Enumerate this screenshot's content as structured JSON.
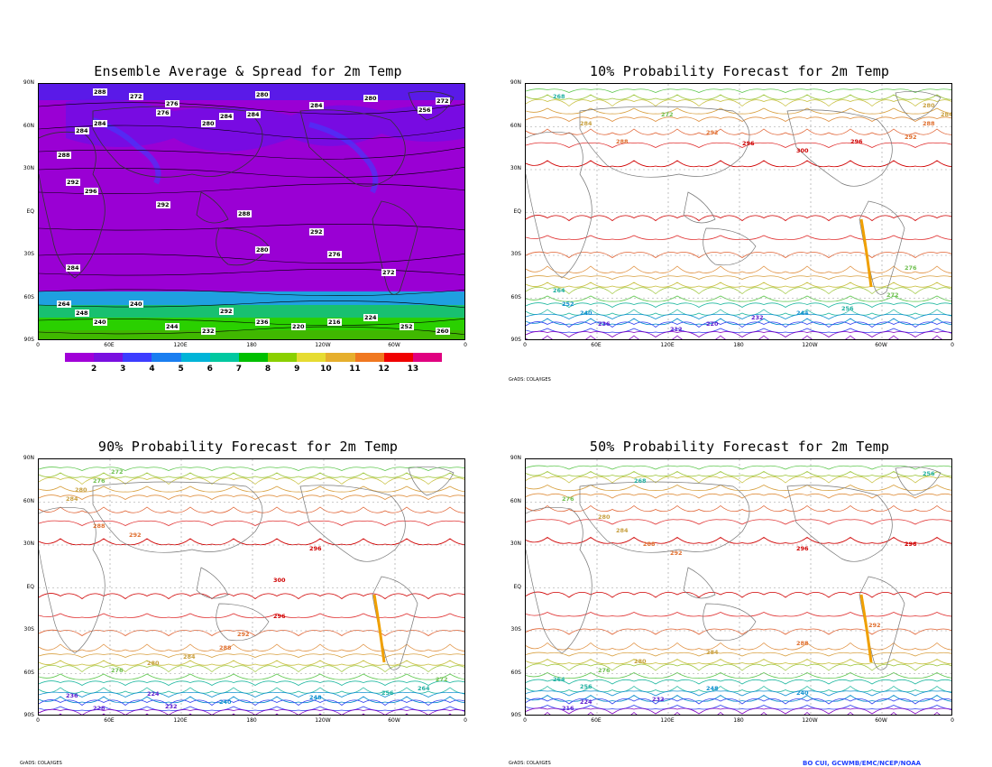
{
  "panels": {
    "p1": {
      "title": "Ensemble Average & Spread for 2m Temp"
    },
    "p2": {
      "title": "10% Probability Forecast for 2m Temp"
    },
    "p3": {
      "title": "90% Probability Forecast for 2m Temp"
    },
    "p4": {
      "title": "50% Probability Forecast for 2m Temp"
    }
  },
  "lat_labels": [
    "90N",
    "60N",
    "30N",
    "EQ",
    "30S",
    "60S",
    "90S"
  ],
  "lon_labels": [
    "0",
    "60E",
    "120E",
    "180",
    "120W",
    "60W",
    "0"
  ],
  "colorbar": {
    "labels": [
      "2",
      "3",
      "4",
      "5",
      "6",
      "7",
      "8",
      "9",
      "10",
      "11",
      "12",
      "13"
    ],
    "colors": [
      "#a100d8",
      "#7a10e0",
      "#3d3dff",
      "#1a7ef0",
      "#00b4d8",
      "#00c8a0",
      "#00c000",
      "#8ad000",
      "#e6dc32",
      "#e6af2d",
      "#f07820",
      "#f00000",
      "#e00080"
    ]
  },
  "contour_colors": {
    "warm_300": "#d00000",
    "296": "#e03030",
    "292": "#e06030",
    "288": "#e09040",
    "284": "#d8a040",
    "280": "#c8c040",
    "276": "#a0c840",
    "272": "#60c850",
    "264": "#20b8a0",
    "250": "#1090d0",
    "236": "#3040f0",
    "220": "#8000c0"
  },
  "credits": {
    "grads": "GrADS: COLA/IGES",
    "author": "BO CUI, GCWMB/EMC/NCEP/NOAA"
  },
  "contour_labels": {
    "p1": [
      "288",
      "272",
      "276",
      "280",
      "284",
      "284",
      "280",
      "276",
      "284",
      "284",
      "284",
      "280",
      "272",
      "256",
      "288",
      "292",
      "296",
      "292",
      "288",
      "292",
      "276",
      "272",
      "264",
      "248",
      "240",
      "244",
      "232",
      "236",
      "220",
      "216",
      "224",
      "252",
      "260",
      "240",
      "292",
      "284",
      "280"
    ],
    "p2": [
      "268",
      "284",
      "288",
      "272",
      "292",
      "296",
      "300",
      "296",
      "292",
      "288",
      "284",
      "280",
      "276",
      "272",
      "256",
      "244",
      "232",
      "220",
      "212",
      "236",
      "240",
      "252",
      "264"
    ],
    "p3": [
      "272",
      "276",
      "280",
      "284",
      "288",
      "292",
      "296",
      "300",
      "296",
      "292",
      "288",
      "284",
      "280",
      "276",
      "272",
      "264",
      "256",
      "248",
      "240",
      "232",
      "228",
      "236",
      "224"
    ],
    "p4": [
      "256",
      "268",
      "276",
      "280",
      "284",
      "288",
      "292",
      "296",
      "296",
      "292",
      "288",
      "284",
      "280",
      "276",
      "264",
      "256",
      "248",
      "240",
      "232",
      "224",
      "216"
    ]
  }
}
